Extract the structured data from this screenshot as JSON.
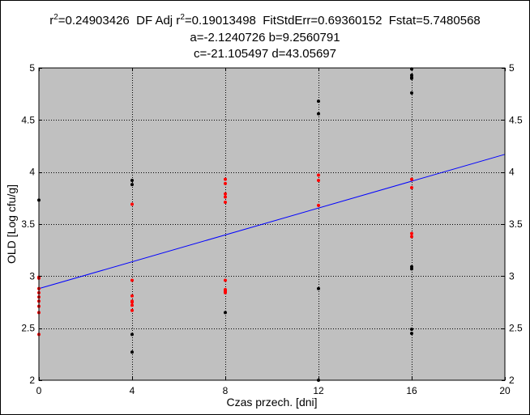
{
  "title": {
    "r2_label": "r",
    "r2_sup": "2",
    "r2_value": "=0.24903426",
    "dfadj_label": "DF Adj r",
    "dfadj_sup": "2",
    "dfadj_value": "=0.19013498",
    "fit_std_err": "FitStdErr=0.69360152",
    "fstat": "Fstat=5.7480568",
    "line2": "a=-2.1240726 b=9.2560791",
    "line3": "c=-21.105497 d=43.05697"
  },
  "chart_data": {
    "type": "scatter",
    "title": "",
    "xlabel": "Czas przech. [dni]",
    "ylabel": "OLD [Log cfu/g]",
    "xlim": [
      0,
      20
    ],
    "ylim": [
      2,
      5
    ],
    "x_ticks": [
      0,
      4,
      8,
      12,
      16,
      20
    ],
    "y_ticks": [
      2,
      2.5,
      3,
      3.5,
      4,
      4.5,
      5
    ],
    "x_tick_labels": [
      "0",
      "4",
      "8",
      "12",
      "16",
      "20"
    ],
    "y_tick_labels": [
      "2",
      "2.5",
      "3",
      "3.5",
      "4",
      "4.5",
      "5"
    ],
    "grid": true,
    "plot_background": "#c0c0c0",
    "fit_line": {
      "color": "#0000ff",
      "x": [
        0,
        20
      ],
      "y": [
        2.88,
        4.17
      ]
    },
    "series": [
      {
        "color": "#ff0000",
        "x": [
          0,
          0,
          0,
          0,
          0,
          0,
          0,
          0,
          0,
          4,
          4,
          4,
          4,
          4,
          4,
          4,
          8,
          8,
          8,
          8,
          8,
          8,
          8,
          8,
          8,
          8,
          12,
          12,
          12,
          16,
          16,
          16,
          16
        ],
        "y": [
          2.99,
          2.98,
          2.88,
          2.84,
          2.8,
          2.76,
          2.71,
          2.65,
          2.44,
          3.69,
          2.96,
          2.81,
          2.76,
          2.75,
          2.72,
          2.67,
          3.93,
          3.89,
          3.79,
          3.76,
          3.71,
          2.96,
          2.87,
          2.86,
          2.85,
          2.84,
          3.97,
          3.92,
          3.68,
          3.93,
          3.85,
          3.41,
          3.38
        ]
      },
      {
        "color": "#000000",
        "x": [
          0,
          4,
          4,
          4,
          4,
          8,
          12,
          12,
          12,
          12,
          16,
          16,
          16,
          16,
          16,
          16,
          16,
          16,
          16
        ],
        "y": [
          3.73,
          3.92,
          3.88,
          2.44,
          2.27,
          2.65,
          4.68,
          4.56,
          2.88,
          2.0,
          4.99,
          4.93,
          4.91,
          4.9,
          4.76,
          3.09,
          3.07,
          2.49,
          2.45
        ]
      }
    ]
  }
}
